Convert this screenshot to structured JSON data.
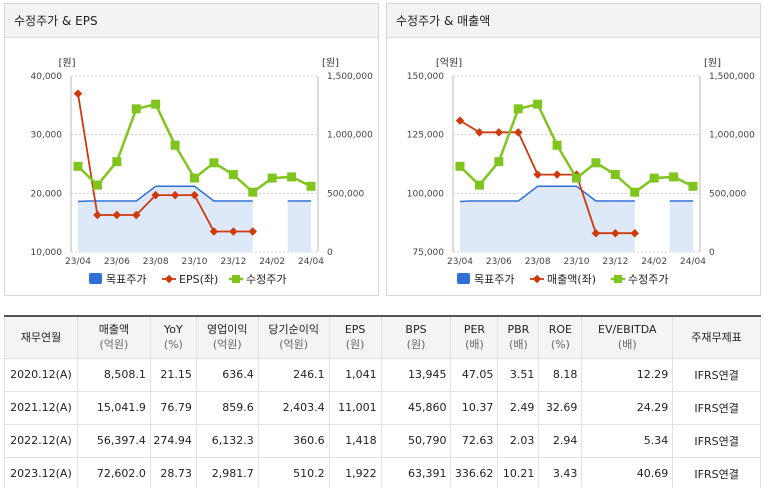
{
  "panels": [
    {
      "title": "수정주가 & EPS",
      "left_unit": "[원]",
      "right_unit": "[원]",
      "legend": [
        "목표주가",
        "EPS(좌)",
        "수정주가"
      ]
    },
    {
      "title": "수정주가 & 매출액",
      "left_unit": "[억원]",
      "right_unit": "[원]",
      "legend": [
        "목표주가",
        "매출액(좌)",
        "수정주가"
      ]
    }
  ],
  "colors": {
    "target": "#2f6fd6",
    "target_fill": "#dde9f9",
    "left_series": "#cc3a0e",
    "price": "#80c51d",
    "grid": "#cfcfcf"
  },
  "chart_data": [
    {
      "type": "line",
      "title": "수정주가 & EPS",
      "x": [
        "23/04",
        "23/05",
        "23/06",
        "23/07",
        "23/08",
        "23/09",
        "23/10",
        "23/11",
        "23/12",
        "24/01",
        "24/02",
        "24/03",
        "24/04"
      ],
      "x_tick_labels": [
        "23/04",
        "23/06",
        "23/08",
        "23/10",
        "23/12",
        "24/02",
        "24/04"
      ],
      "left_axis": {
        "ticks": [
          "40,000",
          "30,000",
          "20,000",
          "10,000"
        ],
        "ylim": [
          10000,
          40000
        ]
      },
      "right_axis": {
        "ticks": [
          "1,500,000",
          "1,000,000",
          "500,000",
          "0"
        ],
        "ylim": [
          0,
          1500000
        ]
      },
      "series": [
        {
          "name": "목표주가",
          "axis": "right",
          "style": "area",
          "points": [
            [
              0,
              430000
            ],
            [
              0.5,
              435000
            ],
            [
              1,
              435000
            ],
            [
              2,
              435000
            ],
            [
              3,
              435000
            ],
            [
              4,
              560000
            ],
            [
              5,
              560000
            ],
            [
              6,
              560000
            ],
            [
              7,
              435000
            ],
            [
              8,
              435000
            ],
            [
              9,
              435000
            ]
          ],
          "gap_points": [
            [
              10.8,
              435000
            ],
            [
              12,
              435000
            ]
          ]
        },
        {
          "name": "EPS(좌)",
          "axis": "left",
          "style": "line",
          "values": [
            37000,
            16300,
            16300,
            16300,
            19700,
            19700,
            19700,
            13500,
            13500,
            13500,
            null,
            null,
            null
          ]
        },
        {
          "name": "수정주가",
          "axis": "right",
          "style": "line",
          "values": [
            730000,
            570000,
            770000,
            1220000,
            1260000,
            910000,
            630000,
            760000,
            660000,
            510000,
            630000,
            640000,
            560000
          ]
        }
      ]
    },
    {
      "type": "line",
      "title": "수정주가 & 매출액",
      "x": [
        "23/04",
        "23/05",
        "23/06",
        "23/07",
        "23/08",
        "23/09",
        "23/10",
        "23/11",
        "23/12",
        "24/01",
        "24/02",
        "24/03",
        "24/04"
      ],
      "x_tick_labels": [
        "23/04",
        "23/06",
        "23/08",
        "23/10",
        "23/12",
        "24/02",
        "24/04"
      ],
      "left_axis": {
        "ticks": [
          "150,000",
          "125,000",
          "100,000",
          "75,000"
        ],
        "ylim": [
          75000,
          150000
        ]
      },
      "right_axis": {
        "ticks": [
          "1,500,000",
          "1,000,000",
          "500,000",
          "0"
        ],
        "ylim": [
          0,
          1500000
        ]
      },
      "series": [
        {
          "name": "목표주가",
          "axis": "right",
          "style": "area",
          "points": [
            [
              0,
              430000
            ],
            [
              0.5,
              435000
            ],
            [
              1,
              435000
            ],
            [
              2,
              435000
            ],
            [
              3,
              435000
            ],
            [
              4,
              560000
            ],
            [
              5,
              560000
            ],
            [
              6,
              560000
            ],
            [
              7,
              435000
            ],
            [
              8,
              435000
            ],
            [
              9,
              435000
            ]
          ],
          "gap_points": [
            [
              10.8,
              435000
            ],
            [
              12,
              435000
            ]
          ]
        },
        {
          "name": "매출액(좌)",
          "axis": "left",
          "style": "line",
          "values": [
            131000,
            126000,
            126000,
            126000,
            108000,
            108000,
            108000,
            83000,
            83000,
            83000,
            null,
            null,
            null
          ]
        },
        {
          "name": "수정주가",
          "axis": "right",
          "style": "line",
          "values": [
            730000,
            570000,
            770000,
            1220000,
            1260000,
            910000,
            630000,
            760000,
            660000,
            510000,
            630000,
            640000,
            560000
          ]
        }
      ]
    }
  ],
  "table": {
    "headers": [
      [
        "재무연월",
        ""
      ],
      [
        "매출액",
        "(억원)"
      ],
      [
        "YoY",
        "(%)"
      ],
      [
        "영업이익",
        "(억원)"
      ],
      [
        "당기순이익",
        "(억원)"
      ],
      [
        "EPS",
        "(원)"
      ],
      [
        "BPS",
        "(원)"
      ],
      [
        "PER",
        "(배)"
      ],
      [
        "PBR",
        "(배)"
      ],
      [
        "ROE",
        "(%)"
      ],
      [
        "EV/EBITDA",
        "(배)"
      ],
      [
        "주재무제표",
        ""
      ]
    ],
    "rows": [
      [
        "2020.12(A)",
        "8,508.1",
        "21.15",
        "636.4",
        "246.1",
        "1,041",
        "13,945",
        "47.05",
        "3.51",
        "8.18",
        "12.29",
        "IFRS연결"
      ],
      [
        "2021.12(A)",
        "15,041.9",
        "76.79",
        "859.6",
        "2,403.4",
        "11,001",
        "45,860",
        "10.37",
        "2.49",
        "32.69",
        "24.29",
        "IFRS연결"
      ],
      [
        "2022.12(A)",
        "56,397.4",
        "274.94",
        "6,132.3",
        "360.6",
        "1,418",
        "50,790",
        "72.63",
        "2.03",
        "2.94",
        "5.34",
        "IFRS연결"
      ],
      [
        "2023.12(A)",
        "72,602.0",
        "28.73",
        "2,981.7",
        "510.2",
        "1,922",
        "63,391",
        "336.62",
        "10.21",
        "3.43",
        "40.69",
        "IFRS연결"
      ]
    ]
  }
}
